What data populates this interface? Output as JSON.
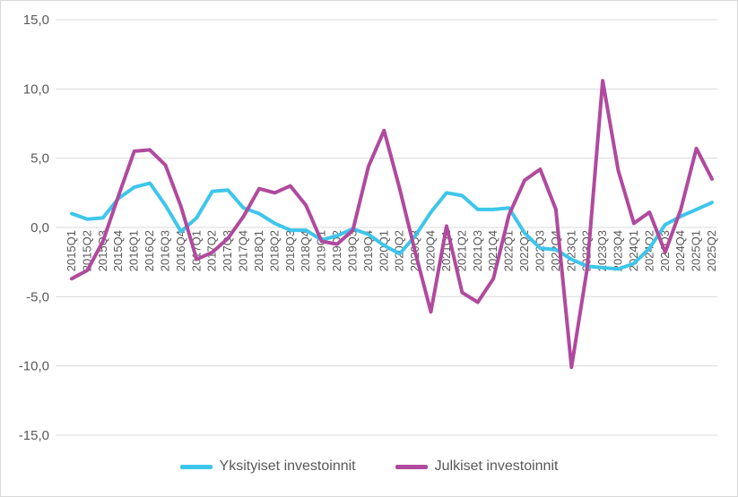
{
  "colors": {
    "private": "#3ec6ea",
    "public": "#b04a9e",
    "grid": "#d9d9d9",
    "text": "#595959"
  },
  "chart_data": {
    "type": "line",
    "title": "",
    "xlabel": "",
    "ylabel": "",
    "ylim": [
      -15,
      15
    ],
    "yticks": [
      -15,
      -10,
      -5,
      0,
      5,
      10,
      15
    ],
    "ytick_labels": [
      "-15,0",
      "-10,0",
      "-5,0",
      "0,0",
      "5,0",
      "10,0",
      "15,0"
    ],
    "grid": "horizontal",
    "legend": "bottom",
    "x": [
      "2015Q1",
      "2015Q2",
      "2015Q3",
      "2015Q4",
      "2016Q1",
      "2016Q2",
      "2016Q3",
      "2016Q4",
      "2017Q1",
      "2017Q2",
      "2017Q3",
      "2017Q4",
      "2018Q1",
      "2018Q2",
      "2018Q3",
      "2018Q4",
      "2019Q1",
      "2019Q2",
      "2019Q3",
      "2019Q4",
      "2020Q1",
      "2020Q2",
      "2020Q3",
      "2020Q4",
      "2021Q1",
      "2021Q2",
      "2021Q3",
      "2021Q4",
      "2022Q1",
      "2022Q2",
      "2022Q3",
      "2022Q4",
      "2023Q1",
      "2023Q2",
      "2023Q3",
      "2023Q4",
      "2024Q1",
      "2024Q2",
      "2024Q3",
      "2024Q4",
      "2025Q1",
      "2025Q2"
    ],
    "series": [
      {
        "name": "Yksityiset investoinnit",
        "values": [
          1.0,
          0.6,
          0.7,
          2.1,
          2.9,
          3.2,
          1.6,
          -0.3,
          0.7,
          2.6,
          2.7,
          1.4,
          1.0,
          0.3,
          -0.2,
          -0.2,
          -0.9,
          -0.6,
          -0.1,
          -0.5,
          -1.3,
          -1.9,
          -0.6,
          1.1,
          2.5,
          2.3,
          1.3,
          1.3,
          1.4,
          -0.4,
          -1.5,
          -1.6,
          -2.3,
          -2.8,
          -2.9,
          -3.0,
          -2.6,
          -1.5,
          0.2,
          0.8,
          1.3,
          1.8
        ]
      },
      {
        "name": "Julkiset investoinnit",
        "values": [
          -3.7,
          -3.1,
          -1.0,
          2.3,
          5.5,
          5.6,
          4.5,
          1.5,
          -2.3,
          -1.8,
          -0.8,
          0.8,
          2.8,
          2.5,
          3.0,
          1.6,
          -1.0,
          -1.2,
          -0.2,
          4.4,
          7.0,
          2.8,
          -1.8,
          -6.1,
          0.1,
          -4.7,
          -5.4,
          -3.7,
          0.9,
          3.4,
          4.2,
          1.3,
          -10.1,
          -3.0,
          10.6,
          4.1,
          0.3,
          1.1,
          -1.8,
          1.3,
          5.7,
          3.5
        ]
      }
    ]
  }
}
